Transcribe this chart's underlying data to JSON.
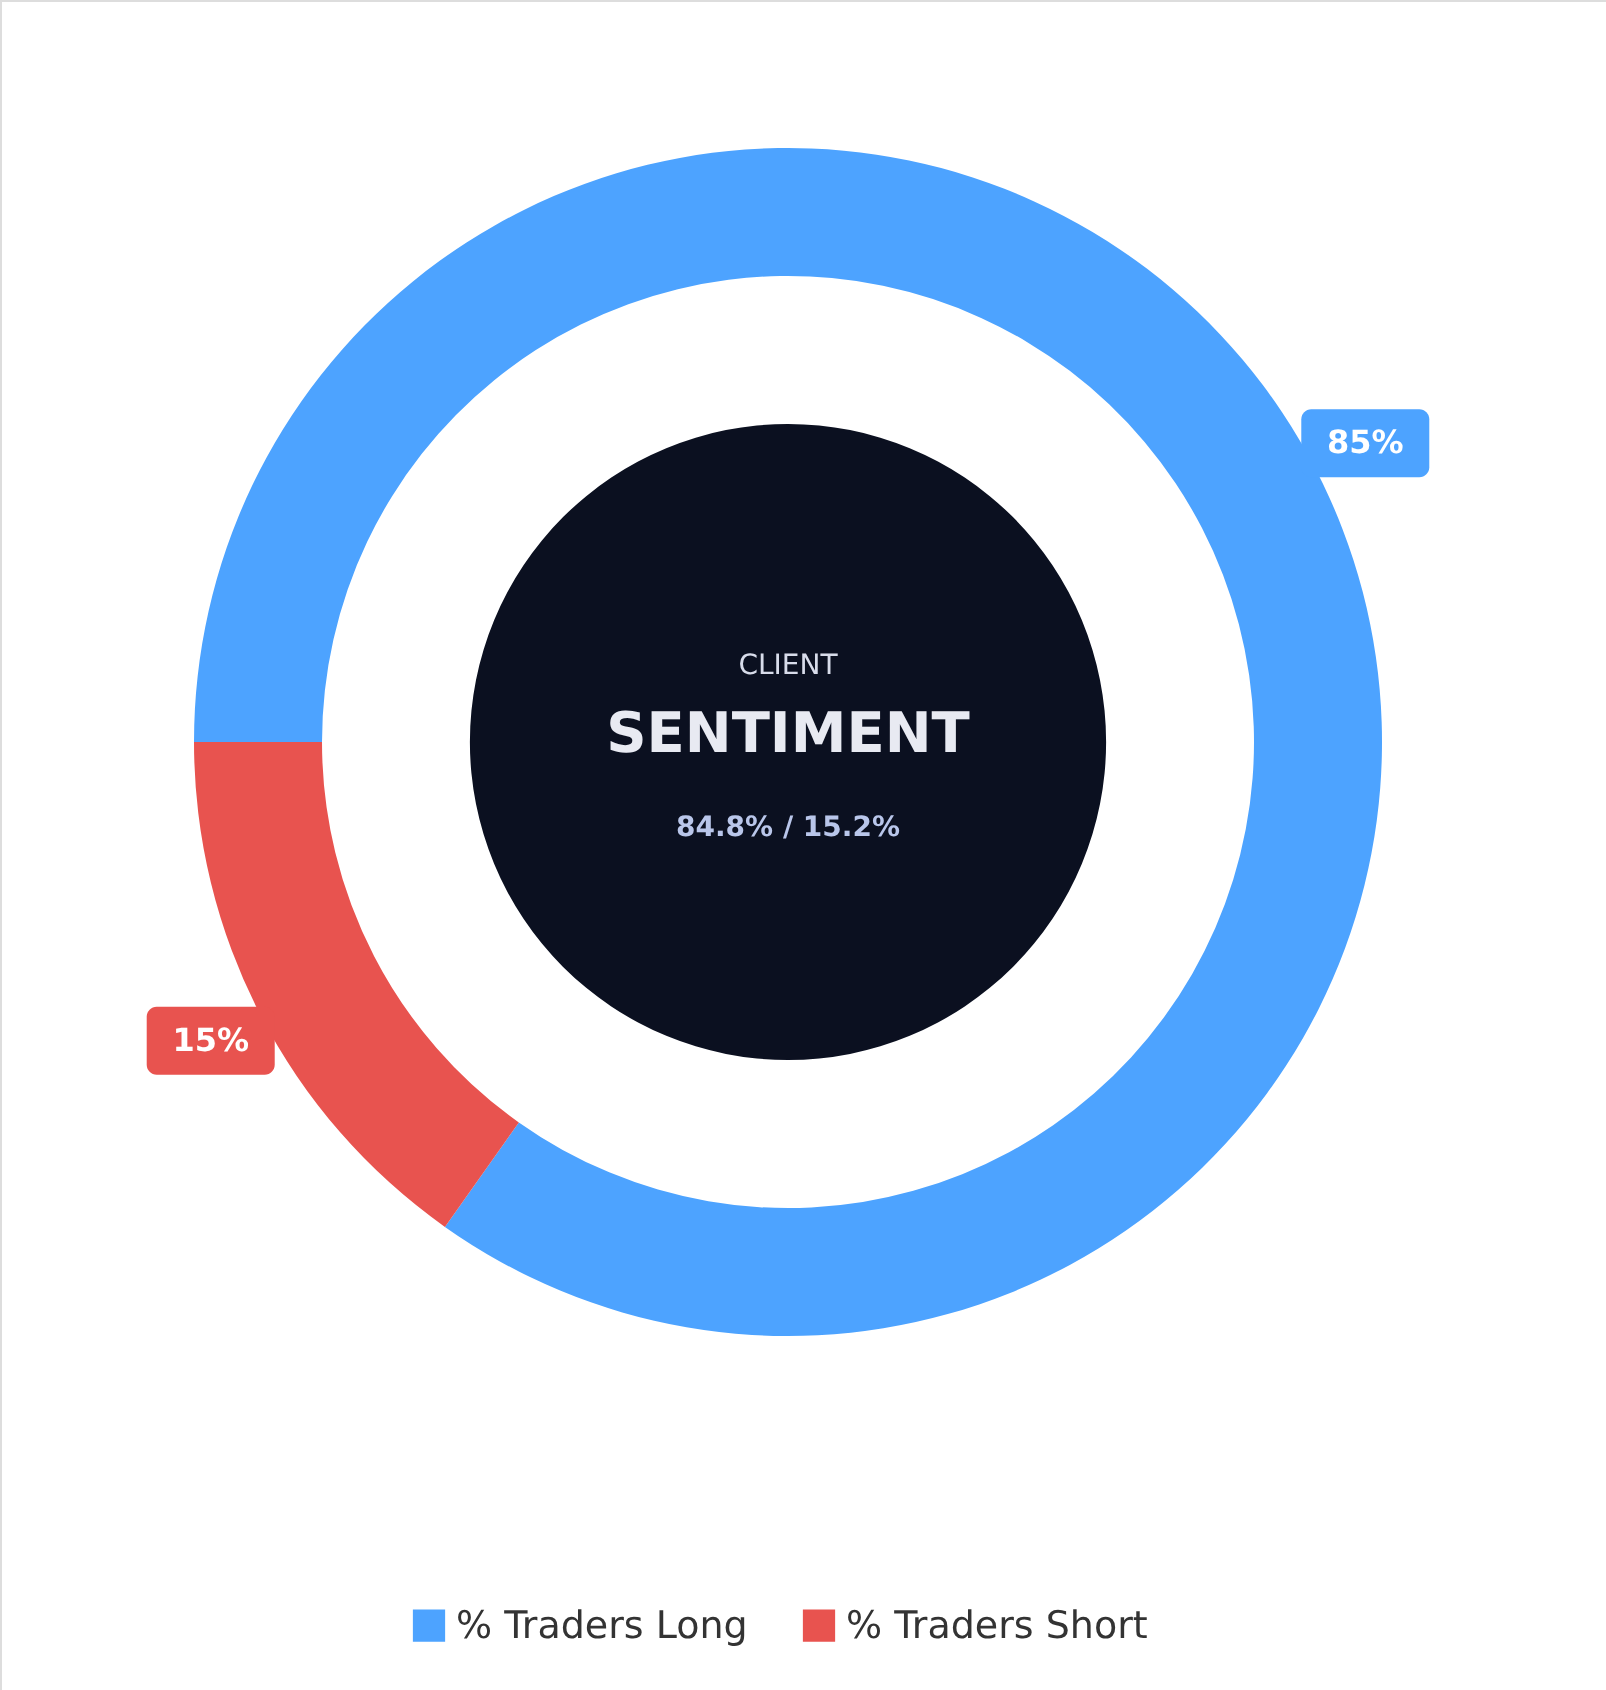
{
  "chart_data": {
    "type": "donut",
    "categories": [
      "% Traders Long",
      "% Traders Short"
    ],
    "values": [
      84.8,
      15.2
    ],
    "colors": [
      "#4da3ff",
      "#e8534f"
    ],
    "value_labels": [
      "85%",
      "15%"
    ],
    "annotations": [
      "CLIENT",
      "SENTIMENT",
      "84.8% / 15.2%"
    ],
    "legend": "bottom"
  }
}
